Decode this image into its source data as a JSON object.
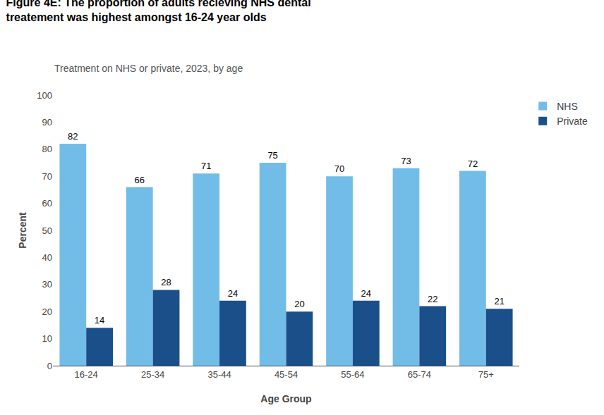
{
  "chart_data": {
    "type": "bar",
    "title": "Figure 4E: The proportion of adults recieving NHS dental\ntreatement was highest amongst 16-24 year olds",
    "subtitle": "Treatment on NHS or private, 2023, by age",
    "xlabel": "Age Group",
    "ylabel": "Percent",
    "categories": [
      "16-24",
      "25-34",
      "35-44",
      "45-54",
      "55-64",
      "65-74",
      "75+"
    ],
    "series": [
      {
        "name": "NHS",
        "color": "#72BDE8",
        "values": [
          82,
          66,
          71,
          75,
          70,
          73,
          72
        ]
      },
      {
        "name": "Private",
        "color": "#1B4F8A",
        "values": [
          14,
          28,
          24,
          20,
          24,
          22,
          21
        ]
      }
    ],
    "ylim": [
      0,
      100
    ],
    "yticks": [
      0,
      10,
      20,
      30,
      40,
      50,
      60,
      70,
      80,
      90,
      100
    ],
    "grid": false,
    "legend": "upper right",
    "data_labels": true
  }
}
